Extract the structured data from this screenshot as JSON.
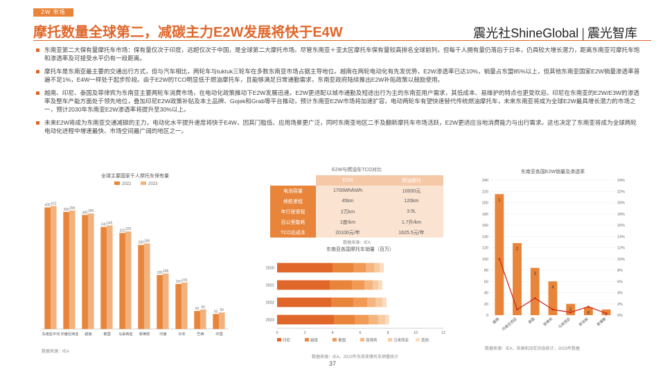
{
  "header": {
    "tag": "2W 市场",
    "title": "摩托数量全球第二，减碳主力E2W发展将快于E4W",
    "brand_cn": "震光社",
    "brand_en": "ShineGlobal",
    "brand_sep": "|",
    "brand_cn2": "震光智库"
  },
  "bullets": [
    {
      "text": "东南亚第二大保有量摩托车市场：保有量仅次于印度，远超仅次于中国，是全球第二大摩托市场。尽管东南亚＋亚太区摩托车保有量较高排名全球前列，但每千人拥有量仍落后于日本，仍具较大增长潜力，距离东南亚可摩托车饱和渗透率及可接受水平仍有一段距离。"
    },
    {
      "text": "摩托车是东南亚最主要的交通出行方式，但与汽车相比，两轮车与tuktuk三轮车在多数东南亚市场占据主导地位。越南在两轮电动化有先发优势，E2W渗透率已达10%，销量占东盟85%以上，但其他东南亚国家E2W销量渗透率普遍不足1%，E4W一样处于起步阶段。由于E2W的TCO明显低于燃油摩托车，且能够满足日常通勤需求，东南亚政府陆续推出E2W补贴政策以鼓励使用。"
    },
    {
      "text": "越南、印尼、泰国及菲律宾为东南亚主要两轮车消费市场，在电动化政策推动下E2W发展迅速。E2W更适配以城市通勤及短途出行为主的东南亚用户需求，其低成本、易维护的特点也更受欢迎。印尼在东南亚的E2W/E3W的渗透率及整车产能方面处于领先地位，叠加印尼E2W政策补贴及本土品牌、Gojek和Grab等平台推动，预计东南亚E2W市场将加速扩容，电动两轮车有望快速替代传统燃油摩托车，未来东南亚将成为全球E2W最具增长潜力的市场之一，预计2030年东南亚E2W渗透率将提升至30%以上。"
    },
    {
      "text": "未来E2W将成为东南亚交通减碳的主力，电动化水平提升速度将快于E4W，因其门槛低、应用场景更广泛，同时东南亚地区二手及翻新摩托车市场活跃，E2W更适应当地消费能力与出行需求。这也决定了东南亚将成为全球两轮电动化进程中增速最快、市场空间最广阔的地区之一。"
    }
  ],
  "colors": {
    "accent": "#e0662a",
    "bar1": "#e8853a",
    "bar2": "#f2b27e",
    "line": "#cc2a1e"
  },
  "chart_left": {
    "type": "bar",
    "title": "全球主要国家千人摩托车保有量",
    "legend": [
      "2022",
      "2023"
    ],
    "categories": [
      "东南亚平均",
      "印度尼西亚",
      "越南",
      "泰国",
      "马来西亚",
      "菲律宾",
      "印度",
      "日本",
      "巴西",
      "中国"
    ],
    "series": [
      {
        "name": "2022",
        "values": [
          405,
          390,
          380,
          340,
          320,
          280,
          180,
          150,
          60,
          50
        ]
      },
      {
        "name": "2023",
        "values": [
          410,
          395,
          385,
          345,
          325,
          285,
          185,
          155,
          65,
          55
        ]
      }
    ],
    "ylim": [
      0,
      450
    ],
    "source": "数据来源：IEA"
  },
  "chart_tco": {
    "type": "table",
    "title": "E2W与燃油车TCO对比",
    "columns": [
      "",
      "E2W",
      "燃油摩托"
    ],
    "rows": [
      [
        "电池容量",
        "1700Wh/kWh",
        "10000元"
      ],
      [
        "续航里程",
        "45km",
        "120km"
      ],
      [
        "年行驶里程",
        "2万km",
        "3.5L"
      ],
      [
        "百公里能耗",
        "1度/km",
        "1.7升/km"
      ],
      [
        "TCO总成本",
        "20100元/年",
        "1625.5元/年"
      ]
    ],
    "source": "数据来源：IEA"
  },
  "chart_mid": {
    "type": "bar",
    "title": "东南亚各国摩托车销量（百万）",
    "categories": [
      "2020",
      "2021",
      "2022",
      "2023"
    ],
    "series": [
      {
        "name": "印尼",
        "values": [
          4.0,
          3.8,
          3.9,
          4.1
        ]
      },
      {
        "name": "越南",
        "values": [
          1.5,
          1.6,
          1.6,
          1.5
        ]
      },
      {
        "name": "泰国",
        "values": [
          0.9,
          0.9,
          1.0,
          1.0
        ]
      },
      {
        "name": "菲律宾",
        "values": [
          0.6,
          0.6,
          0.6,
          0.7
        ]
      },
      {
        "name": "马来西亚",
        "values": [
          0.4,
          0.4,
          0.5,
          0.5
        ]
      },
      {
        "name": "其他",
        "values": [
          0.3,
          0.3,
          0.3,
          0.3
        ]
      }
    ],
    "xlim": [
      0,
      12
    ],
    "ticks": [
      0,
      2,
      4,
      6,
      8,
      10,
      12
    ],
    "source": "数据来源：IEA，2023年东南亚摩托车销量统计"
  },
  "chart_right": {
    "type": "bar",
    "title": "东南亚各国E2W销量及渗透率",
    "categories": [
      "越南",
      "印度尼西亚",
      "泰国",
      "菲律宾",
      "马来西亚",
      "新加坡",
      "柬埔寨"
    ],
    "values": [
      215,
      128,
      84,
      60,
      20,
      14,
      10
    ],
    "ranks": [
      "1",
      "2",
      "3",
      "4",
      "5",
      "6",
      "7"
    ],
    "line_values": [
      10,
      1,
      3,
      1,
      0.5,
      1.5,
      0.3
    ],
    "ylim": [
      0,
      240
    ],
    "y2lim": [
      0,
      24
    ],
    "source": "数据来源：IEA、各国机动车协会统计，2023年数据"
  },
  "page_number": "37"
}
